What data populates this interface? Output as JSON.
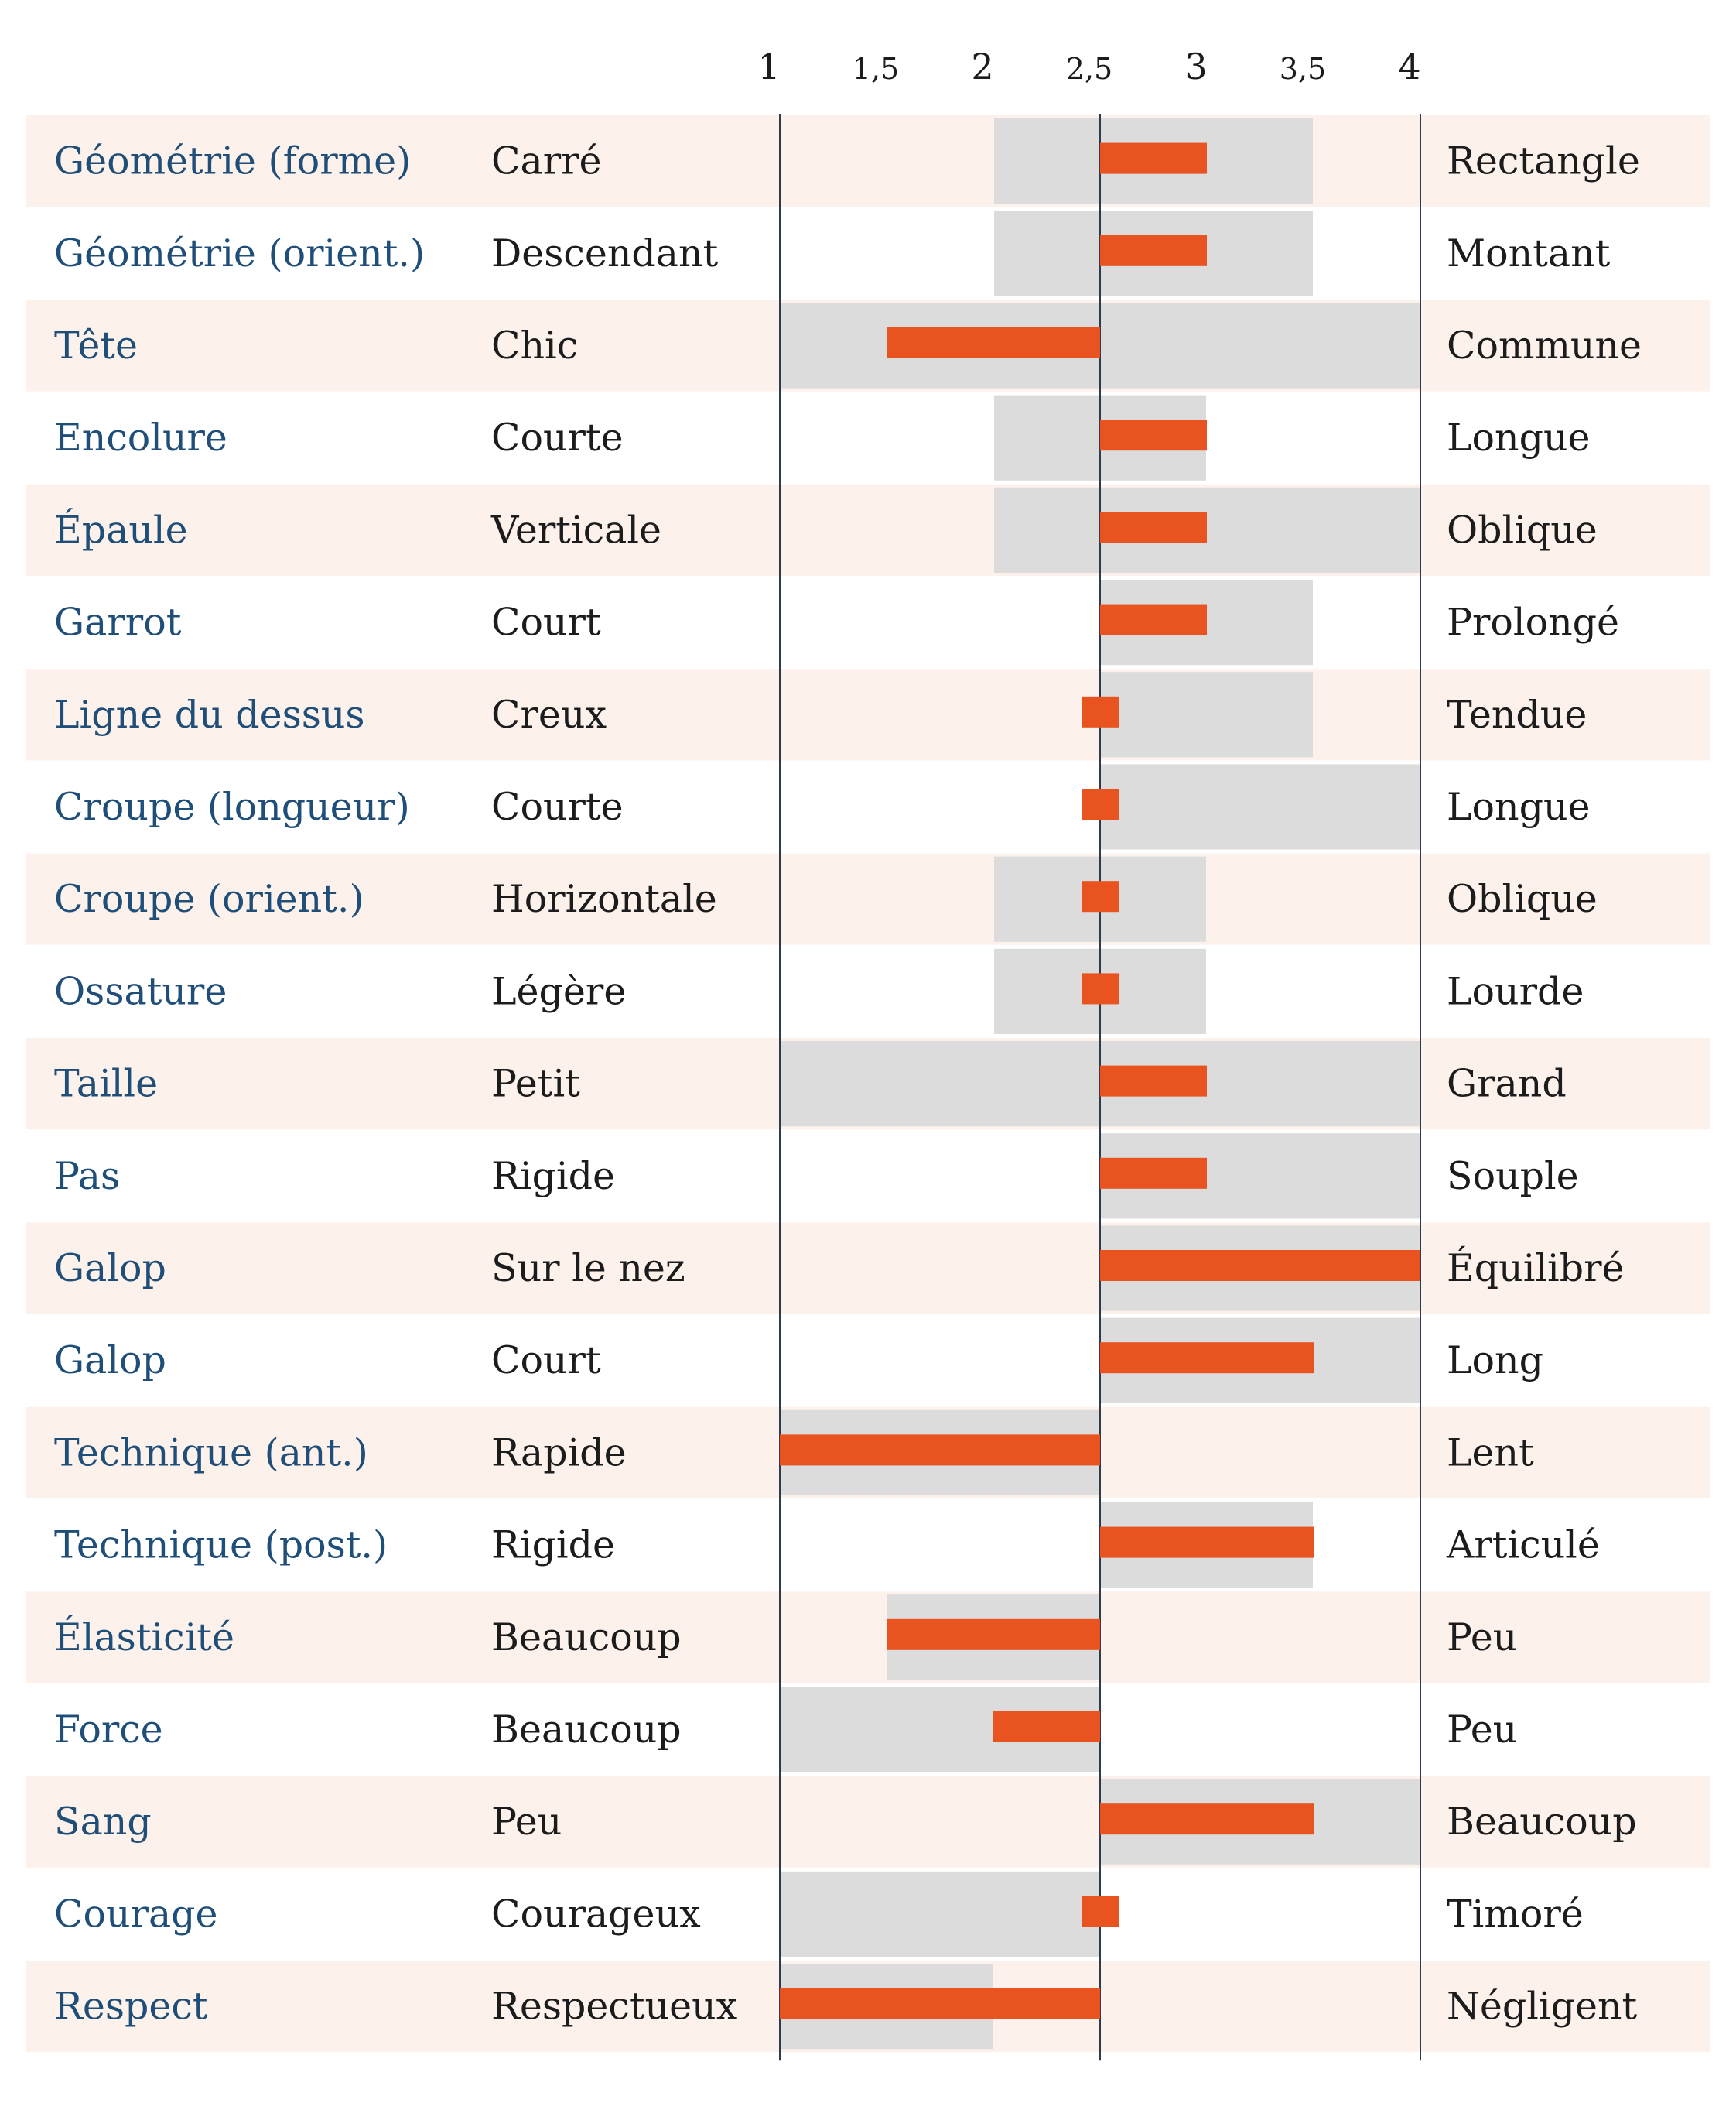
{
  "chart_data": {
    "type": "bar",
    "title": "",
    "xlim": [
      1,
      4
    ],
    "reference": 2.5,
    "x_ticks": [
      "1",
      "1,5",
      "2",
      "2,5",
      "3",
      "3,5",
      "4"
    ],
    "tick_values": [
      1,
      1.5,
      2,
      2.5,
      3,
      3.5,
      4
    ],
    "series": [
      {
        "name": "",
        "kind": "value",
        "color": "#e8531f"
      },
      {
        "name": "",
        "kind": "range",
        "color": "#dcdcdc"
      }
    ],
    "rows": [
      {
        "trait": "Géométrie (forme)",
        "low": "Carré",
        "high": "Rectangle",
        "value": 3,
        "range": [
          2,
          3.5
        ]
      },
      {
        "trait": "Géométrie (orient.)",
        "low": "Descendant",
        "high": "Montant",
        "value": 3,
        "range": [
          2,
          3.5
        ]
      },
      {
        "trait": "Tête",
        "low": "Chic",
        "high": "Commune",
        "value": 1.5,
        "range": [
          1,
          4
        ]
      },
      {
        "trait": "Encolure",
        "low": "Courte",
        "high": "Longue",
        "value": 3,
        "range": [
          2,
          3
        ]
      },
      {
        "trait": "Épaule",
        "low": "Verticale",
        "high": "Oblique",
        "value": 3,
        "range": [
          2,
          4
        ]
      },
      {
        "trait": "Garrot",
        "low": "Court",
        "high": "Prolongé",
        "value": 3,
        "range": [
          2.5,
          3.5
        ]
      },
      {
        "trait": "Ligne du dessus",
        "low": "Creux",
        "high": "Tendue",
        "value": 2.5,
        "range": [
          2.5,
          3.5
        ]
      },
      {
        "trait": "Croupe (longueur)",
        "low": "Courte",
        "high": "Longue",
        "value": 2.5,
        "range": [
          2.5,
          4
        ]
      },
      {
        "trait": "Croupe (orient.)",
        "low": "Horizontale",
        "high": "Oblique",
        "value": 2.5,
        "range": [
          2,
          3
        ]
      },
      {
        "trait": "Ossature",
        "low": "Légère",
        "high": "Lourde",
        "value": 2.5,
        "range": [
          2,
          3
        ]
      },
      {
        "trait": "Taille",
        "low": "Petit",
        "high": "Grand",
        "value": 3,
        "range": [
          1,
          4
        ]
      },
      {
        "trait": "Pas",
        "low": "Rigide",
        "high": "Souple",
        "value": 3,
        "range": [
          2.5,
          4
        ]
      },
      {
        "trait": "Galop",
        "low": "Sur le nez",
        "high": "Équilibré",
        "value": 4,
        "range": [
          2.5,
          4
        ]
      },
      {
        "trait": "Galop",
        "low": "Court",
        "high": "Long",
        "value": 3.5,
        "range": [
          2.5,
          4
        ]
      },
      {
        "trait": "Technique (ant.)",
        "low": "Rapide",
        "high": "Lent",
        "value": 1,
        "range": [
          1,
          2.5
        ]
      },
      {
        "trait": "Technique (post.)",
        "low": "Rigide",
        "high": "Articulé",
        "value": 3.5,
        "range": [
          2.5,
          3.5
        ]
      },
      {
        "trait": "Élasticité",
        "low": "Beaucoup",
        "high": "Peu",
        "value": 1.5,
        "range": [
          1.5,
          2.5
        ]
      },
      {
        "trait": "Force",
        "low": "Beaucoup",
        "high": "Peu",
        "value": 2,
        "range": [
          1,
          2.5
        ]
      },
      {
        "trait": "Sang",
        "low": "Peu",
        "high": "Beaucoup",
        "value": 3.5,
        "range": [
          2.5,
          4
        ]
      },
      {
        "trait": "Courage",
        "low": "Courageux",
        "high": "Timoré",
        "value": 2.5,
        "range": [
          1,
          2.5
        ]
      },
      {
        "trait": "Respect",
        "low": "Respectueux",
        "high": "Négligent",
        "value": 1,
        "range": [
          1,
          2
        ]
      }
    ],
    "colors": {
      "stripe": "#fdf1ec",
      "range": "#dcdcdc",
      "value": "#e8531f",
      "trait_text": "#1f4e79",
      "pole_text": "#1c1c1c",
      "axis_line": "#2e3b4e"
    },
    "grid": false,
    "legend": "none"
  }
}
